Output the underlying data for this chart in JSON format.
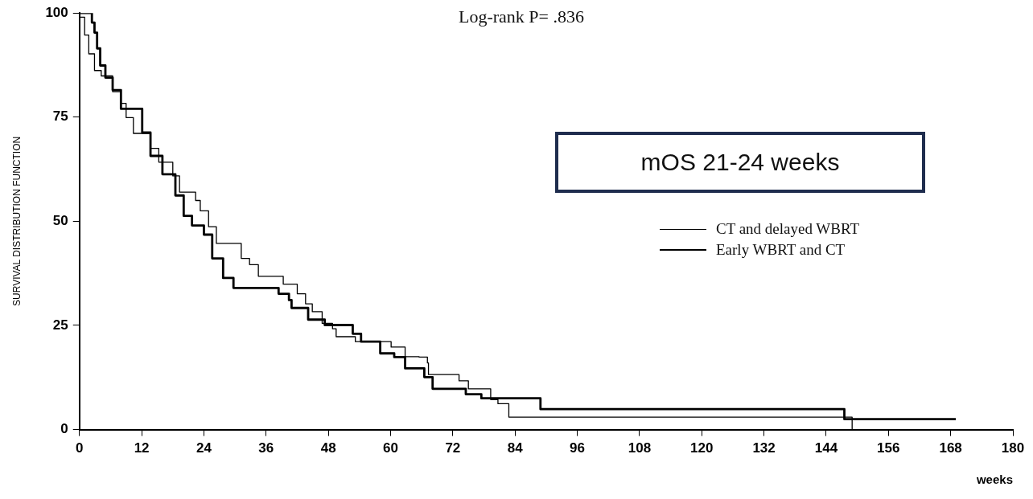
{
  "chart_data": {
    "type": "step",
    "xlabel": "weeks",
    "ylabel": "SURVIVAL DISTRIBUTION FUNCTION",
    "annotations": [
      "Log-rank P= .836",
      "mOS 21-24 weeks"
    ],
    "xlim": [
      0,
      180
    ],
    "xticks": [
      0,
      12,
      24,
      36,
      48,
      60,
      72,
      84,
      96,
      108,
      120,
      132,
      144,
      156,
      168,
      180
    ],
    "ylim": [
      0,
      100
    ],
    "yticks": [
      0,
      25,
      50,
      75,
      100
    ],
    "grid": false,
    "legend": "right",
    "marker": "none",
    "line_style": "solid",
    "series": [
      {
        "name": "CT and delayed WBRT",
        "color": "#000000",
        "x": [
          0,
          0.8,
          1,
          1.8,
          2.9,
          4.2,
          6.4,
          8,
          9,
          10.4,
          13.7,
          15.3,
          18,
          19.3,
          22.4,
          23.3,
          24.9,
          26.4,
          31.2,
          32.8,
          34.5,
          39.3,
          42,
          43.6,
          44.9,
          46.8,
          48.8,
          49.5,
          53.2,
          60.1,
          62.8,
          65.5,
          67.1,
          67.3,
          73.2,
          75,
          79.3,
          80.7,
          82.8,
          149,
          149
        ],
        "values": [
          99,
          99,
          94.7,
          90.2,
          86.2,
          84.9,
          81.1,
          78.3,
          74.9,
          71.1,
          67.5,
          64.2,
          60.9,
          57,
          55,
          52.5,
          48.7,
          44.7,
          41.1,
          39.6,
          36.8,
          34.9,
          32.6,
          30.2,
          28.3,
          25.5,
          24.2,
          22.3,
          21.1,
          19.8,
          17.5,
          17.4,
          16,
          13.2,
          11.7,
          9.8,
          7.2,
          6.2,
          3,
          3,
          0
        ]
      },
      {
        "name": "Early WBRT and CT",
        "color": "#000000",
        "x": [
          0,
          1.6,
          2.4,
          2.9,
          3.4,
          4,
          5,
          6.4,
          8,
          12.1,
          13.7,
          16,
          18.5,
          20.1,
          21.7,
          24,
          25.6,
          27.7,
          29.7,
          38.4,
          40.4,
          40.9,
          44.1,
          47.3,
          52.7,
          54.3,
          58,
          60.7,
          62.8,
          66.5,
          68.1,
          74.5,
          77.5,
          88.9,
          147.5,
          169
        ],
        "values": [
          100,
          100,
          97.7,
          95.3,
          91.5,
          87.4,
          84.5,
          81.5,
          77,
          71.3,
          65.7,
          61.3,
          56.2,
          51.3,
          49,
          46.8,
          41.1,
          36.4,
          34,
          32.6,
          31.1,
          29.2,
          26.4,
          25.1,
          23,
          21.1,
          18.3,
          17.4,
          14.7,
          12.6,
          9.8,
          8.5,
          7.5,
          4.9,
          2.5,
          2.5
        ]
      }
    ]
  }
}
